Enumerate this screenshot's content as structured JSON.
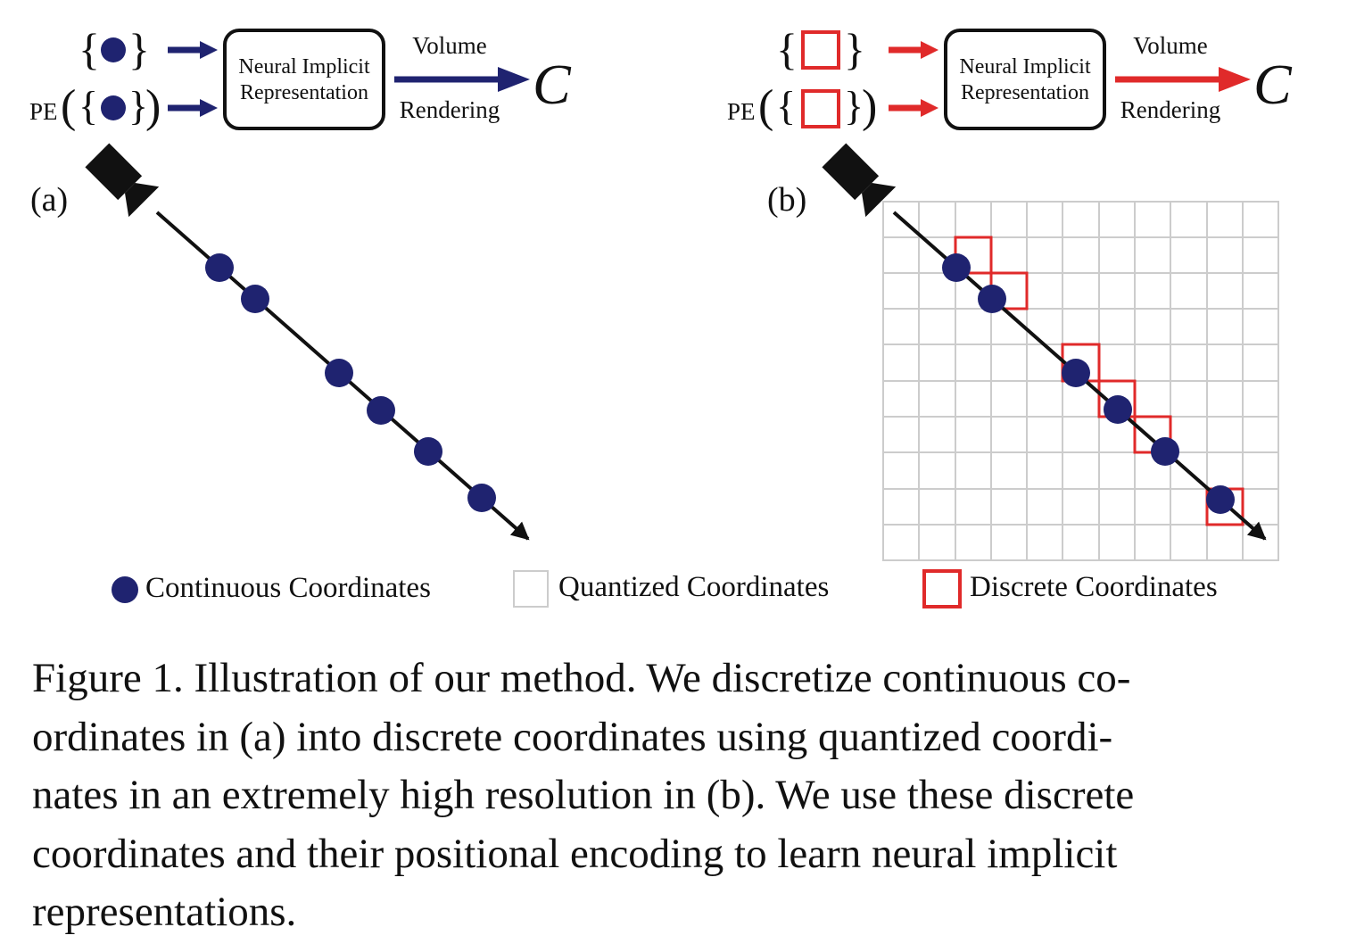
{
  "panel_a": {
    "label": "(a)",
    "pe_label": "PE",
    "box_label_line1": "Neural Implicit",
    "box_label_line2": "Representation",
    "arrow_top_label": "Volume",
    "arrow_bottom_label": "Rendering",
    "output_symbol": "C",
    "accent_color": "#1f2370"
  },
  "panel_b": {
    "label": "(b)",
    "pe_label": "PE",
    "box_label_line1": "Neural Implicit",
    "box_label_line2": "Representation",
    "arrow_top_label": "Volume",
    "arrow_bottom_label": "Rendering",
    "output_symbol": "C",
    "accent_color": "#e02a2a"
  },
  "legend": {
    "continuous": "Continuous Coordinates",
    "quantized": "Quantized Coordinates",
    "discrete": "Discrete Coordinates"
  },
  "caption": {
    "line1": "Figure 1. Illustration of our method. We discretize continuous co-",
    "line2": "ordinates in (a) into discrete coordinates using quantized coordi-",
    "line3": "nates in an extremely high resolution in (b). We use these discrete",
    "line4": "coordinates and their positional encoding to learn neural implicit",
    "line5": "representations."
  },
  "icons": {
    "camera": "camera-icon",
    "arrow": "arrow-right-icon"
  }
}
